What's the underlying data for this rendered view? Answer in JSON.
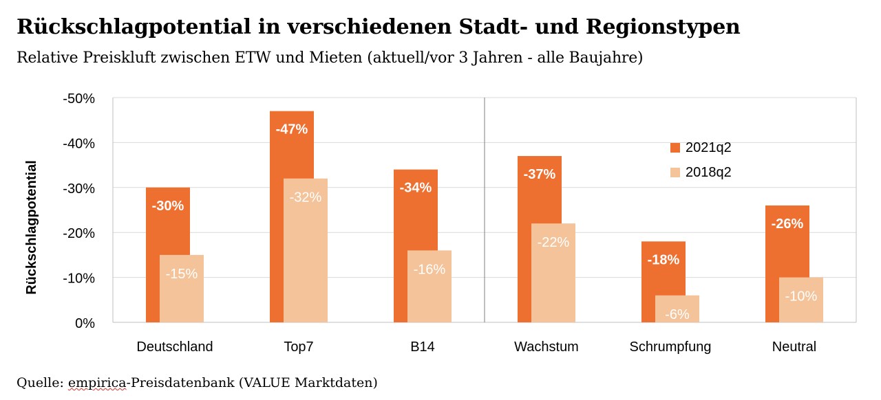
{
  "title": "Rückschlagpotential in verschiedenen Stadt- und Regionstypen",
  "subtitle": "Relative Preiskluft zwischen ETW und Mieten (aktuell/vor 3 Jahren - alle Baujahre)",
  "source": {
    "prefix": "Quelle: ",
    "org": "empirica",
    "suffix": "-Preisdatenbank (VALUE Marktdaten)"
  },
  "colors": {
    "series_2021": "#ed7031",
    "series_2018": "#f4c39a",
    "grid": "#d9d9d9",
    "axis": "#bfbfbf"
  },
  "chart_data": {
    "type": "bar",
    "ylabel": "Rückschlagpotential",
    "ylim": [
      0,
      -50
    ],
    "yticks": [
      "0%",
      "-10%",
      "-20%",
      "-30%",
      "-40%",
      "-50%"
    ],
    "grid": true,
    "legend_position": "top-right",
    "categories": [
      "Deutschland",
      "Top7",
      "B14",
      "Wachstum",
      "Schrumpfung",
      "Neutral"
    ],
    "series": [
      {
        "name": "2021q2",
        "values": [
          -30,
          -47,
          -34,
          -37,
          -18,
          -26
        ],
        "labels": [
          "-30%",
          "-47%",
          "-34%",
          "-37%",
          "-18%",
          "-26%"
        ]
      },
      {
        "name": "2018q2",
        "values": [
          -15,
          -32,
          -16,
          -22,
          -6,
          -10
        ],
        "labels": [
          "-15%",
          "-32%",
          "-16%",
          "-22%",
          "-6%",
          "-10%"
        ]
      }
    ]
  }
}
